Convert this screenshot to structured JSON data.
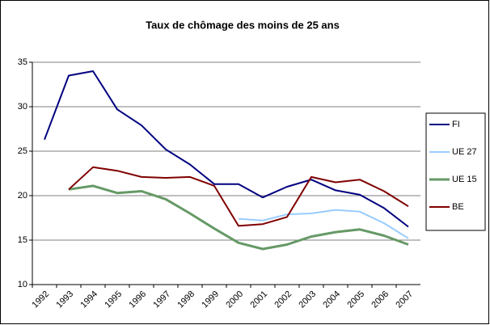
{
  "chart_data": {
    "type": "line",
    "title": "Taux de chômage des moins de 25 ans",
    "categories": [
      "1992",
      "1993",
      "1994",
      "1995",
      "1996",
      "1997",
      "1998",
      "1999",
      "2000",
      "2001",
      "2002",
      "2003",
      "2004",
      "2005",
      "2006",
      "2007"
    ],
    "series": [
      {
        "name": "FI",
        "color": "#000080",
        "values": [
          26.3,
          33.5,
          34,
          29.7,
          27.9,
          25.2,
          23.5,
          21.3,
          21.3,
          19.8,
          21,
          21.8,
          20.6,
          20.1,
          18.6,
          16.5
        ]
      },
      {
        "name": "UE 27",
        "color": "#99ccff",
        "values": [
          null,
          null,
          null,
          null,
          null,
          null,
          null,
          null,
          17.4,
          17.2,
          17.9,
          18,
          18.4,
          18.2,
          16.9,
          15.2
        ]
      },
      {
        "name": "UE 15",
        "color": "#669966",
        "values": [
          null,
          20.7,
          21.1,
          20.3,
          20.5,
          19.6,
          18,
          16.3,
          14.7,
          14,
          14.5,
          15.4,
          15.9,
          16.2,
          15.5,
          14.5
        ]
      },
      {
        "name": "BE",
        "color": "#800000",
        "values": [
          null,
          20.7,
          23.2,
          22.8,
          22.1,
          22,
          22.1,
          21.1,
          16.6,
          16.8,
          17.6,
          22.1,
          21.5,
          21.8,
          20.5,
          18.8
        ]
      }
    ],
    "ylim": [
      10,
      35
    ],
    "yticks": [
      10,
      15,
      20,
      25,
      30,
      35
    ],
    "grid": true,
    "legend": "right"
  }
}
